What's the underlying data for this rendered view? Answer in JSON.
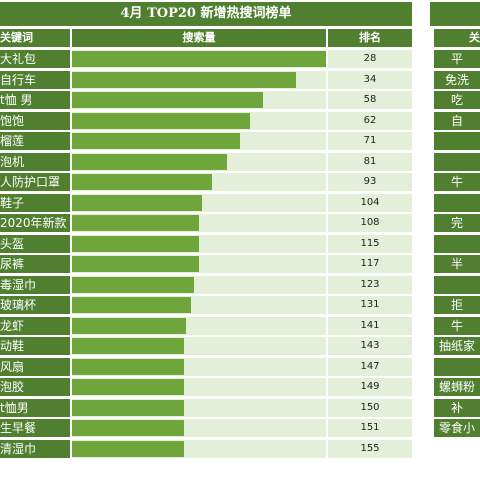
{
  "title": "4月  TOP20 新增热搜词榜单",
  "headers": {
    "keyword": "关键词",
    "volume": "搜索量",
    "rank": "排名"
  },
  "chart_data": {
    "type": "bar",
    "orientation": "horizontal",
    "title": "4月  TOP20 新增热搜词榜单",
    "categories": [
      "大礼包",
      "自行车",
      "t恤 男",
      "饱饱",
      "榴莲",
      "泡机",
      "人防护口罩",
      "鞋子",
      "2020年新款",
      "头盔",
      "尿裤",
      "毒湿巾",
      "玻璃杯",
      "龙虾",
      "动鞋",
      "风扇",
      "泡胶",
      "t恤男",
      "生早餐",
      "清湿巾"
    ],
    "values": [
      28,
      34,
      58,
      62,
      71,
      81,
      93,
      104,
      108,
      115,
      117,
      123,
      131,
      141,
      143,
      147,
      149,
      150,
      151,
      155
    ],
    "bar_lengths_pct": [
      100,
      88,
      75,
      70,
      66,
      61,
      55,
      51,
      50,
      50,
      50,
      48,
      47,
      45,
      44,
      44,
      44,
      44,
      44,
      44
    ],
    "colors": {
      "bar": "#6ea63c",
      "header": "#4f7f2f",
      "track": "#e4efd9"
    }
  },
  "right_panel": {
    "header": "关",
    "items": [
      "平",
      "免洗",
      "吃",
      "自",
      "",
      "",
      "牛",
      "",
      "完",
      "",
      "半",
      "",
      "拒",
      "牛",
      "抽纸家",
      "",
      "螺蛳粉",
      "补",
      "零食小"
    ]
  }
}
